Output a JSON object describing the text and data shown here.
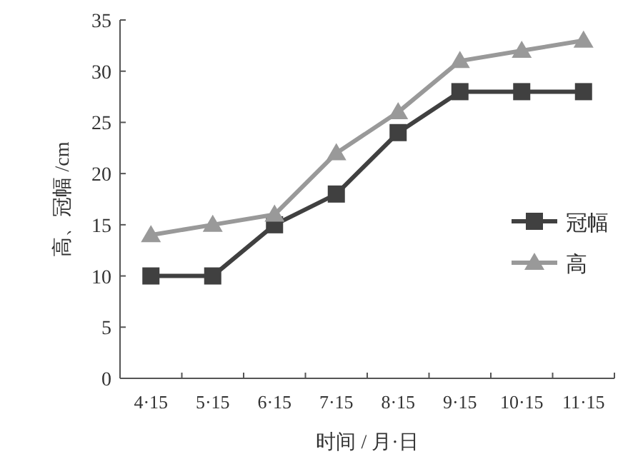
{
  "chart_data": {
    "type": "line",
    "xlabel": "时间 / 月·日",
    "ylabel": "高、冠幅 /cm",
    "categories": [
      "4·15",
      "5·15",
      "6·15",
      "7·15",
      "8·15",
      "9·15",
      "10·15",
      "11·15"
    ],
    "series": [
      {
        "name": "冠幅",
        "color": "#404040",
        "marker": "square",
        "values": [
          10,
          10,
          15,
          18,
          24,
          28,
          28,
          28
        ]
      },
      {
        "name": "高",
        "color": "#999999",
        "marker": "triangle",
        "values": [
          14,
          15,
          16,
          22,
          26,
          31,
          32,
          33
        ]
      }
    ],
    "ylim": [
      0,
      35
    ],
    "yticks": [
      0,
      5,
      10,
      15,
      20,
      25,
      30,
      35
    ],
    "grid": false,
    "legend": "right",
    "line_style": "solid"
  }
}
